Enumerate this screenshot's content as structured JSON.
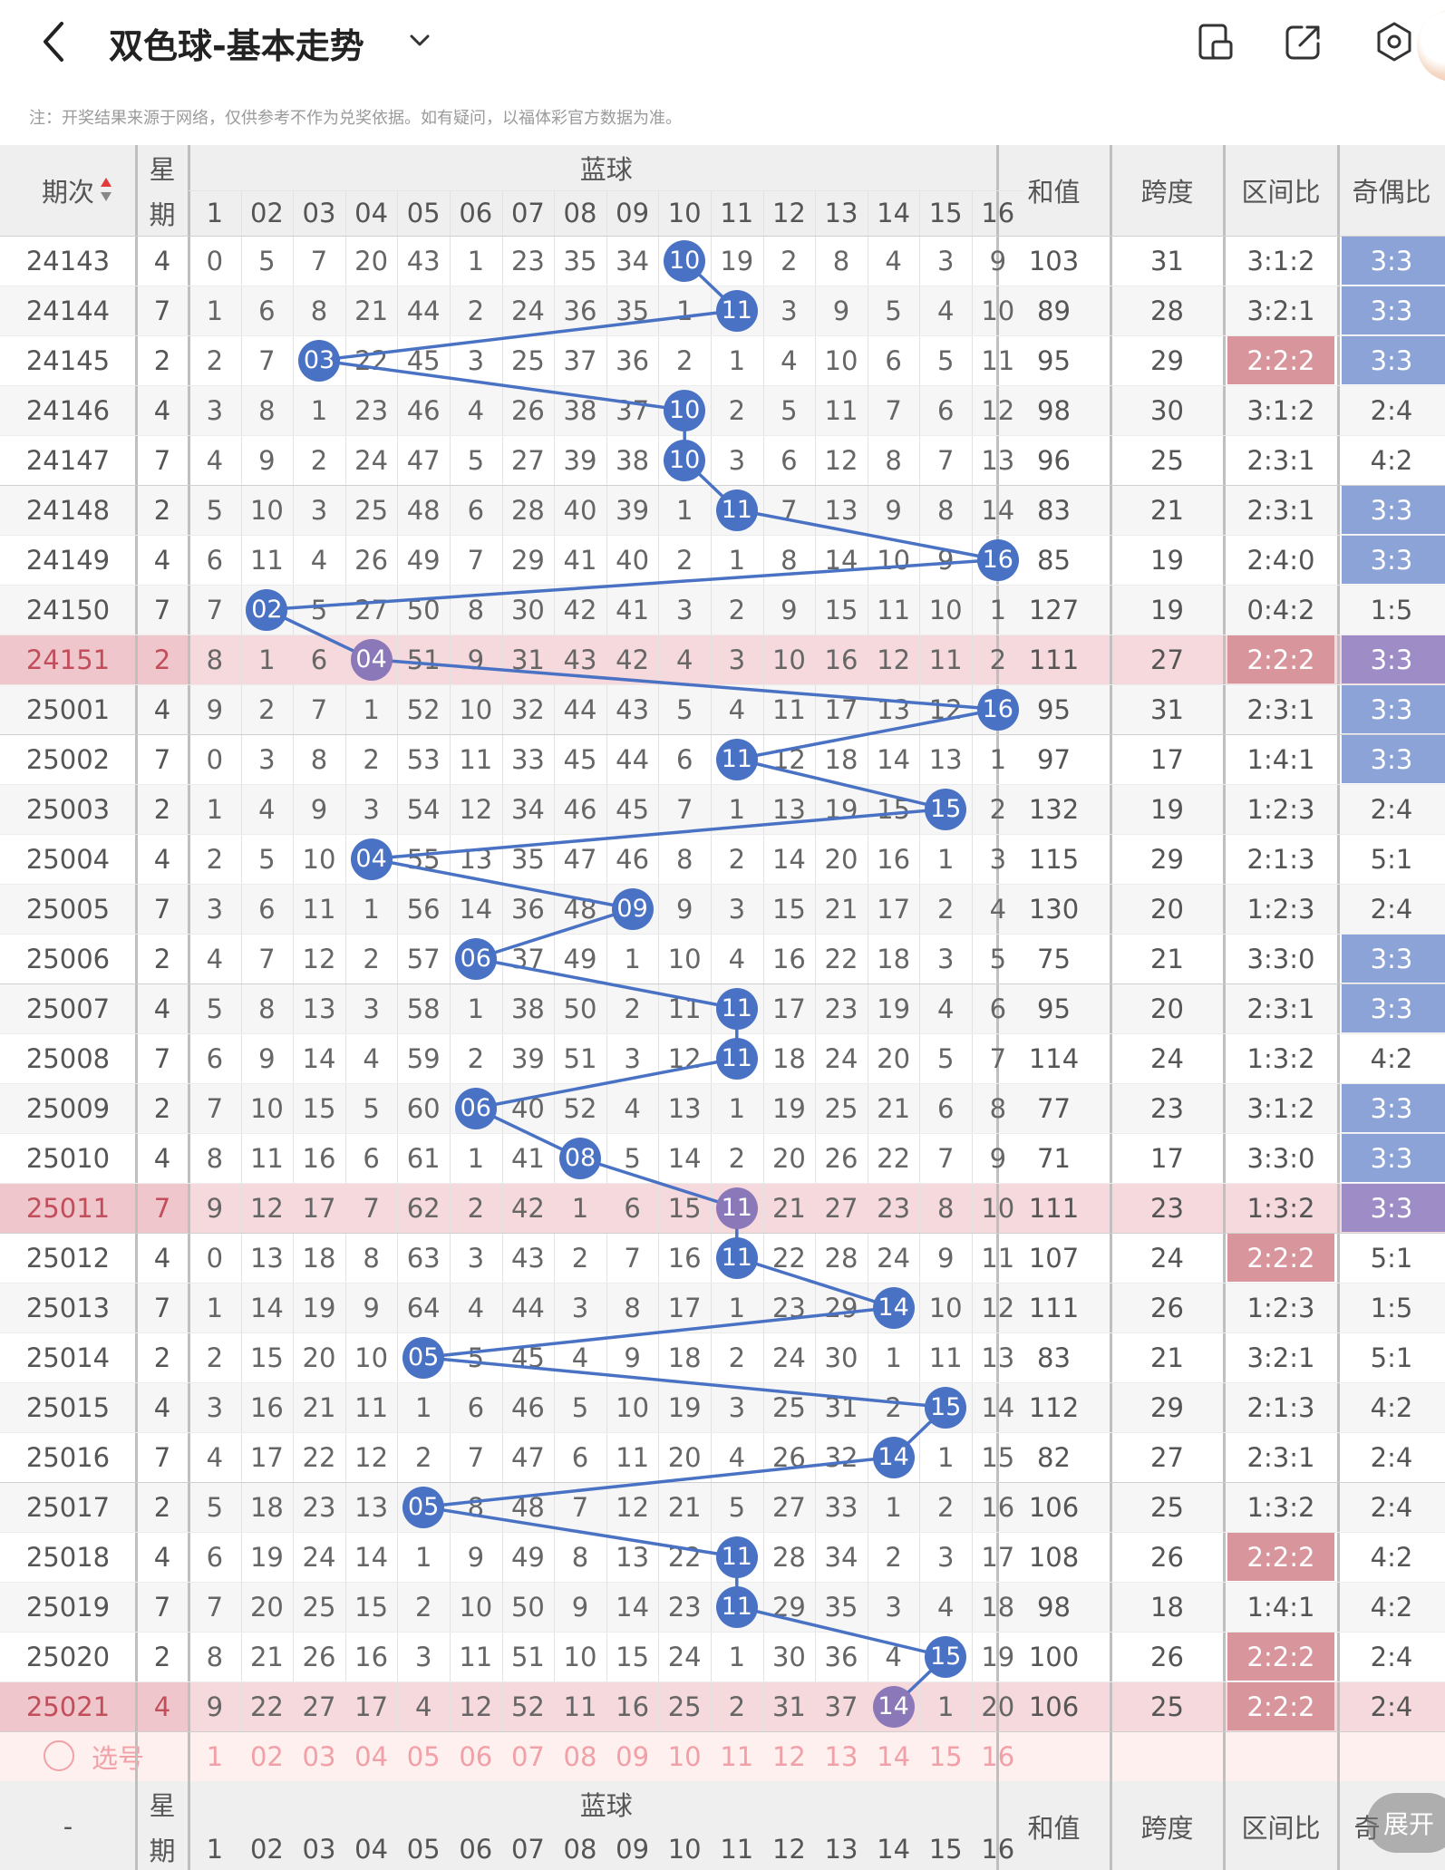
{
  "header": {
    "title": "双色球-基本走势",
    "note": "注：开奖结果来源于网络，仅供参考不作为兑奖依据。如有疑问，以福体彩官方数据为准。"
  },
  "colors": {
    "accent": "#4a72c4",
    "highlight_row": "#f5d9dc",
    "ball_highlight": "#8b78b8",
    "ratio_red": "#d9959c",
    "pink_text": "#f2a0a8"
  },
  "table": {
    "headers": {
      "period": "期次",
      "week_top": "星",
      "week_bottom": "期",
      "blue_group": "蓝球",
      "sum": "和值",
      "span": "跨度",
      "zone_ratio": "区间比",
      "odd_even": "奇偶比"
    },
    "columns": [
      "1",
      "02",
      "03",
      "04",
      "05",
      "06",
      "07",
      "08",
      "09",
      "10",
      "11",
      "12",
      "13",
      "14",
      "15",
      "16"
    ],
    "rows": [
      {
        "period": "24143",
        "week": "4",
        "cells": [
          "0",
          "5",
          "7",
          "20",
          "43",
          "1",
          "23",
          "35",
          "34",
          "10",
          "19",
          "2",
          "8",
          "4",
          "3",
          "9"
        ],
        "ball": 10,
        "sum": "103",
        "span": "31",
        "zone": "3:1:2",
        "oe": "3:3",
        "hl": false,
        "zone_red": false,
        "oe_blue": true
      },
      {
        "period": "24144",
        "week": "7",
        "cells": [
          "1",
          "6",
          "8",
          "21",
          "44",
          "2",
          "24",
          "36",
          "35",
          "1",
          "11",
          "3",
          "9",
          "5",
          "4",
          "10"
        ],
        "ball": 11,
        "sum": "89",
        "span": "28",
        "zone": "3:2:1",
        "oe": "3:3",
        "hl": false,
        "zone_red": false,
        "oe_blue": true
      },
      {
        "period": "24145",
        "week": "2",
        "cells": [
          "2",
          "7",
          "03",
          "22",
          "45",
          "3",
          "25",
          "37",
          "36",
          "2",
          "1",
          "4",
          "10",
          "6",
          "5",
          "11"
        ],
        "ball": 3,
        "sum": "95",
        "span": "29",
        "zone": "2:2:2",
        "oe": "3:3",
        "hl": false,
        "zone_red": true,
        "oe_blue": true
      },
      {
        "period": "24146",
        "week": "4",
        "cells": [
          "3",
          "8",
          "1",
          "23",
          "46",
          "4",
          "26",
          "38",
          "37",
          "10",
          "2",
          "5",
          "11",
          "7",
          "6",
          "12"
        ],
        "ball": 10,
        "sum": "98",
        "span": "30",
        "zone": "3:1:2",
        "oe": "2:4",
        "hl": false,
        "zone_red": false,
        "oe_blue": false
      },
      {
        "period": "24147",
        "week": "7",
        "cells": [
          "4",
          "9",
          "2",
          "24",
          "47",
          "5",
          "27",
          "39",
          "38",
          "10",
          "3",
          "6",
          "12",
          "8",
          "7",
          "13"
        ],
        "ball": 10,
        "sum": "96",
        "span": "25",
        "zone": "2:3:1",
        "oe": "4:2",
        "hl": false,
        "zone_red": false,
        "oe_blue": false
      },
      {
        "period": "24148",
        "week": "2",
        "cells": [
          "5",
          "10",
          "3",
          "25",
          "48",
          "6",
          "28",
          "40",
          "39",
          "1",
          "11",
          "7",
          "13",
          "9",
          "8",
          "14"
        ],
        "ball": 11,
        "sum": "83",
        "span": "21",
        "zone": "2:3:1",
        "oe": "3:3",
        "hl": false,
        "zone_red": false,
        "oe_blue": true
      },
      {
        "period": "24149",
        "week": "4",
        "cells": [
          "6",
          "11",
          "4",
          "26",
          "49",
          "7",
          "29",
          "41",
          "40",
          "2",
          "1",
          "8",
          "14",
          "10",
          "9",
          "16"
        ],
        "ball": 16,
        "sum": "85",
        "span": "19",
        "zone": "2:4:0",
        "oe": "3:3",
        "hl": false,
        "zone_red": false,
        "oe_blue": true
      },
      {
        "period": "24150",
        "week": "7",
        "cells": [
          "7",
          "02",
          "5",
          "27",
          "50",
          "8",
          "30",
          "42",
          "41",
          "3",
          "2",
          "9",
          "15",
          "11",
          "10",
          "1"
        ],
        "ball": 2,
        "sum": "127",
        "span": "19",
        "zone": "0:4:2",
        "oe": "1:5",
        "hl": false,
        "zone_red": false,
        "oe_blue": false
      },
      {
        "period": "24151",
        "week": "2",
        "cells": [
          "8",
          "1",
          "6",
          "04",
          "51",
          "9",
          "31",
          "43",
          "42",
          "4",
          "3",
          "10",
          "16",
          "12",
          "11",
          "2"
        ],
        "ball": 4,
        "sum": "111",
        "span": "27",
        "zone": "2:2:2",
        "oe": "3:3",
        "hl": true,
        "zone_red": true,
        "oe_blue": true
      },
      {
        "period": "25001",
        "week": "4",
        "cells": [
          "9",
          "2",
          "7",
          "1",
          "52",
          "10",
          "32",
          "44",
          "43",
          "5",
          "4",
          "11",
          "17",
          "13",
          "12",
          "16"
        ],
        "ball": 16,
        "sum": "95",
        "span": "31",
        "zone": "2:3:1",
        "oe": "3:3",
        "hl": false,
        "zone_red": false,
        "oe_blue": true
      },
      {
        "period": "25002",
        "week": "7",
        "cells": [
          "0",
          "3",
          "8",
          "2",
          "53",
          "11",
          "33",
          "45",
          "44",
          "6",
          "11",
          "12",
          "18",
          "14",
          "13",
          "1"
        ],
        "ball": 11,
        "sum": "97",
        "span": "17",
        "zone": "1:4:1",
        "oe": "3:3",
        "hl": false,
        "zone_red": false,
        "oe_blue": true
      },
      {
        "period": "25003",
        "week": "2",
        "cells": [
          "1",
          "4",
          "9",
          "3",
          "54",
          "12",
          "34",
          "46",
          "45",
          "7",
          "1",
          "13",
          "19",
          "15",
          "15",
          "2"
        ],
        "ball": 15,
        "sum": "132",
        "span": "19",
        "zone": "1:2:3",
        "oe": "2:4",
        "hl": false,
        "zone_red": false,
        "oe_blue": false
      },
      {
        "period": "25004",
        "week": "4",
        "cells": [
          "2",
          "5",
          "10",
          "04",
          "55",
          "13",
          "35",
          "47",
          "46",
          "8",
          "2",
          "14",
          "20",
          "16",
          "1",
          "3"
        ],
        "ball": 4,
        "sum": "115",
        "span": "29",
        "zone": "2:1:3",
        "oe": "5:1",
        "hl": false,
        "zone_red": false,
        "oe_blue": false
      },
      {
        "period": "25005",
        "week": "7",
        "cells": [
          "3",
          "6",
          "11",
          "1",
          "56",
          "14",
          "36",
          "48",
          "09",
          "9",
          "3",
          "15",
          "21",
          "17",
          "2",
          "4"
        ],
        "ball": 9,
        "sum": "130",
        "span": "20",
        "zone": "1:2:3",
        "oe": "2:4",
        "hl": false,
        "zone_red": false,
        "oe_blue": false
      },
      {
        "period": "25006",
        "week": "2",
        "cells": [
          "4",
          "7",
          "12",
          "2",
          "57",
          "06",
          "37",
          "49",
          "1",
          "10",
          "4",
          "16",
          "22",
          "18",
          "3",
          "5"
        ],
        "ball": 6,
        "sum": "75",
        "span": "21",
        "zone": "3:3:0",
        "oe": "3:3",
        "hl": false,
        "zone_red": false,
        "oe_blue": true
      },
      {
        "period": "25007",
        "week": "4",
        "cells": [
          "5",
          "8",
          "13",
          "3",
          "58",
          "1",
          "38",
          "50",
          "2",
          "11",
          "11",
          "17",
          "23",
          "19",
          "4",
          "6"
        ],
        "ball": 11,
        "sum": "95",
        "span": "20",
        "zone": "2:3:1",
        "oe": "3:3",
        "hl": false,
        "zone_red": false,
        "oe_blue": true
      },
      {
        "period": "25008",
        "week": "7",
        "cells": [
          "6",
          "9",
          "14",
          "4",
          "59",
          "2",
          "39",
          "51",
          "3",
          "12",
          "11",
          "18",
          "24",
          "20",
          "5",
          "7"
        ],
        "ball": 11,
        "sum": "114",
        "span": "24",
        "zone": "1:3:2",
        "oe": "4:2",
        "hl": false,
        "zone_red": false,
        "oe_blue": false
      },
      {
        "period": "25009",
        "week": "2",
        "cells": [
          "7",
          "10",
          "15",
          "5",
          "60",
          "06",
          "40",
          "52",
          "4",
          "13",
          "1",
          "19",
          "25",
          "21",
          "6",
          "8"
        ],
        "ball": 6,
        "sum": "77",
        "span": "23",
        "zone": "3:1:2",
        "oe": "3:3",
        "hl": false,
        "zone_red": false,
        "oe_blue": true
      },
      {
        "period": "25010",
        "week": "4",
        "cells": [
          "8",
          "11",
          "16",
          "6",
          "61",
          "1",
          "41",
          "08",
          "5",
          "14",
          "2",
          "20",
          "26",
          "22",
          "7",
          "9"
        ],
        "ball": 8,
        "sum": "71",
        "span": "17",
        "zone": "3:3:0",
        "oe": "3:3",
        "hl": false,
        "zone_red": false,
        "oe_blue": true
      },
      {
        "period": "25011",
        "week": "7",
        "cells": [
          "9",
          "12",
          "17",
          "7",
          "62",
          "2",
          "42",
          "1",
          "6",
          "15",
          "11",
          "21",
          "27",
          "23",
          "8",
          "10"
        ],
        "ball": 11,
        "sum": "111",
        "span": "23",
        "zone": "1:3:2",
        "oe": "3:3",
        "hl": true,
        "zone_red": false,
        "oe_blue": true
      },
      {
        "period": "25012",
        "week": "4",
        "cells": [
          "0",
          "13",
          "18",
          "8",
          "63",
          "3",
          "43",
          "2",
          "7",
          "16",
          "11",
          "22",
          "28",
          "24",
          "9",
          "11"
        ],
        "ball": 11,
        "sum": "107",
        "span": "24",
        "zone": "2:2:2",
        "oe": "5:1",
        "hl": false,
        "zone_red": true,
        "oe_blue": false
      },
      {
        "period": "25013",
        "week": "7",
        "cells": [
          "1",
          "14",
          "19",
          "9",
          "64",
          "4",
          "44",
          "3",
          "8",
          "17",
          "1",
          "23",
          "29",
          "14",
          "10",
          "12"
        ],
        "ball": 14,
        "sum": "111",
        "span": "26",
        "zone": "1:2:3",
        "oe": "1:5",
        "hl": false,
        "zone_red": false,
        "oe_blue": false
      },
      {
        "period": "25014",
        "week": "2",
        "cells": [
          "2",
          "15",
          "20",
          "10",
          "05",
          "5",
          "45",
          "4",
          "9",
          "18",
          "2",
          "24",
          "30",
          "1",
          "11",
          "13"
        ],
        "ball": 5,
        "sum": "83",
        "span": "21",
        "zone": "3:2:1",
        "oe": "5:1",
        "hl": false,
        "zone_red": false,
        "oe_blue": false
      },
      {
        "period": "25015",
        "week": "4",
        "cells": [
          "3",
          "16",
          "21",
          "11",
          "1",
          "6",
          "46",
          "5",
          "10",
          "19",
          "3",
          "25",
          "31",
          "2",
          "15",
          "14"
        ],
        "ball": 15,
        "sum": "112",
        "span": "29",
        "zone": "2:1:3",
        "oe": "4:2",
        "hl": false,
        "zone_red": false,
        "oe_blue": false
      },
      {
        "period": "25016",
        "week": "7",
        "cells": [
          "4",
          "17",
          "22",
          "12",
          "2",
          "7",
          "47",
          "6",
          "11",
          "20",
          "4",
          "26",
          "32",
          "14",
          "1",
          "15"
        ],
        "ball": 14,
        "sum": "82",
        "span": "27",
        "zone": "2:3:1",
        "oe": "2:4",
        "hl": false,
        "zone_red": false,
        "oe_blue": false
      },
      {
        "period": "25017",
        "week": "2",
        "cells": [
          "5",
          "18",
          "23",
          "13",
          "05",
          "8",
          "48",
          "7",
          "12",
          "21",
          "5",
          "27",
          "33",
          "1",
          "2",
          "16"
        ],
        "ball": 5,
        "sum": "106",
        "span": "25",
        "zone": "1:3:2",
        "oe": "2:4",
        "hl": false,
        "zone_red": false,
        "oe_blue": false
      },
      {
        "period": "25018",
        "week": "4",
        "cells": [
          "6",
          "19",
          "24",
          "14",
          "1",
          "9",
          "49",
          "8",
          "13",
          "22",
          "11",
          "28",
          "34",
          "2",
          "3",
          "17"
        ],
        "ball": 11,
        "sum": "108",
        "span": "26",
        "zone": "2:2:2",
        "oe": "4:2",
        "hl": false,
        "zone_red": true,
        "oe_blue": false
      },
      {
        "period": "25019",
        "week": "7",
        "cells": [
          "7",
          "20",
          "25",
          "15",
          "2",
          "10",
          "50",
          "9",
          "14",
          "23",
          "11",
          "29",
          "35",
          "3",
          "4",
          "18"
        ],
        "ball": 11,
        "sum": "98",
        "span": "18",
        "zone": "1:4:1",
        "oe": "4:2",
        "hl": false,
        "zone_red": false,
        "oe_blue": false
      },
      {
        "period": "25020",
        "week": "2",
        "cells": [
          "8",
          "21",
          "26",
          "16",
          "3",
          "11",
          "51",
          "10",
          "15",
          "24",
          "1",
          "30",
          "36",
          "4",
          "15",
          "19"
        ],
        "ball": 15,
        "sum": "100",
        "span": "26",
        "zone": "2:2:2",
        "oe": "2:4",
        "hl": false,
        "zone_red": true,
        "oe_blue": false
      },
      {
        "period": "25021",
        "week": "4",
        "cells": [
          "9",
          "22",
          "27",
          "17",
          "4",
          "12",
          "52",
          "11",
          "16",
          "25",
          "2",
          "31",
          "37",
          "14",
          "1",
          "20"
        ],
        "ball": 14,
        "sum": "106",
        "span": "25",
        "zone": "2:2:2",
        "oe": "2:4",
        "hl": true,
        "zone_red": true,
        "oe_blue": false
      }
    ],
    "select_row": {
      "label": "选号"
    },
    "footer": {
      "period": "-",
      "zone_ratio_partial": "奇",
      "expand": "展开"
    }
  }
}
